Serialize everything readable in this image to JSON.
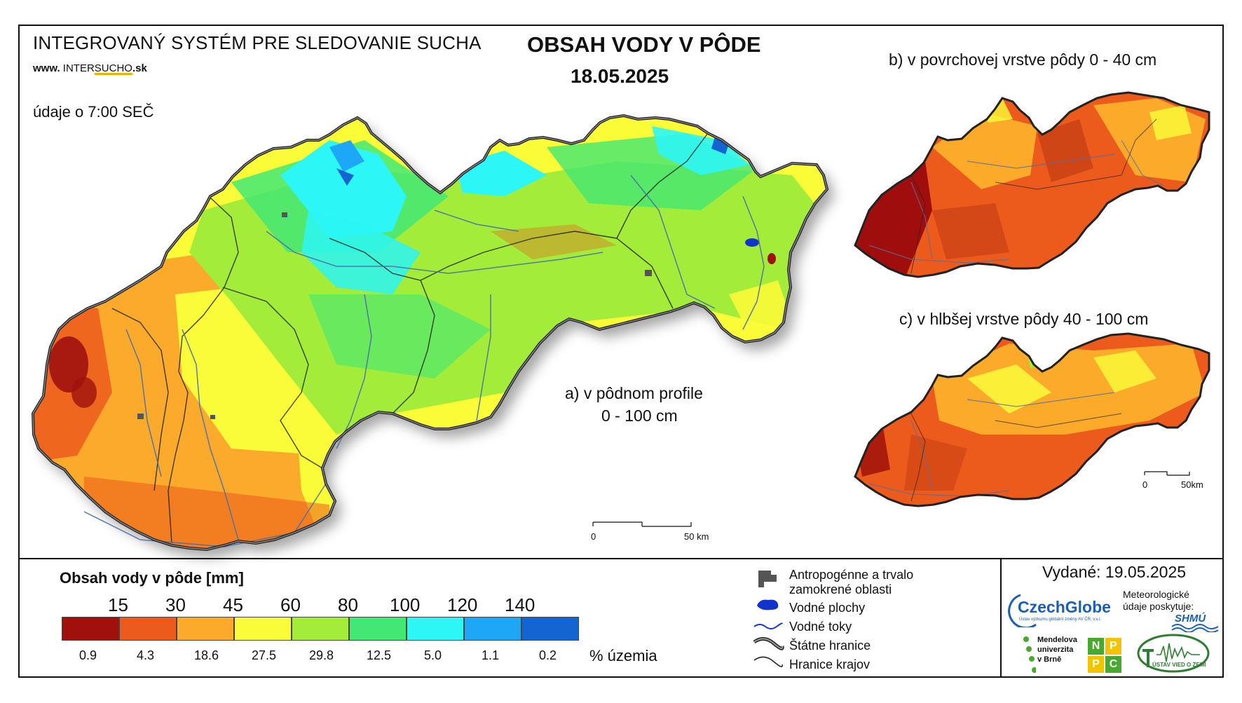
{
  "header": {
    "system_title": "INTEGROVANÝ SYSTÉM PRE SLEDOVANIE SUCHA",
    "website_prefix": "www.",
    "website_name_a": "INTER",
    "website_name_b": "SUCHO",
    "website_suffix": ".sk",
    "data_time": "údaje o 7:00 SEČ",
    "main_title": "OBSAH VODY V PÔDE",
    "date": "18.05.2025"
  },
  "maps": {
    "a_label_line1": "a) v pôdnom profile",
    "a_label_line2": "0 - 100 cm",
    "b_label": "b) v povrchovej vrstve pôdy 0 - 40 cm",
    "c_label": "c) v hlbšej vrstve pôdy 40 - 100 cm",
    "scale_main": {
      "zero": "0",
      "end": "50 km"
    },
    "scale_small": {
      "zero": "0",
      "end": "50km"
    }
  },
  "legend": {
    "title": "Obsah vody v pôde  [mm]",
    "thresholds": [
      "15",
      "30",
      "45",
      "60",
      "80",
      "100",
      "120",
      "140"
    ],
    "classes": [
      {
        "color": "#a0110d",
        "percent": "0.9"
      },
      {
        "color": "#ec5a1c",
        "percent": "4.3"
      },
      {
        "color": "#fbaa2b",
        "percent": "18.6"
      },
      {
        "color": "#fbfc39",
        "percent": "27.5"
      },
      {
        "color": "#a4ec3a",
        "percent": "29.8"
      },
      {
        "color": "#43e774",
        "percent": "12.5"
      },
      {
        "color": "#2cf6f6",
        "percent": "5.0"
      },
      {
        "color": "#1ea7f7",
        "percent": "1.1"
      },
      {
        "color": "#1465d1",
        "percent": "0.2"
      }
    ],
    "percent_label": "% územia"
  },
  "symbols": [
    {
      "icon": "anthropogenic-area-icon",
      "label_line1": "Antropogénne a trvalo",
      "label_line2": "zamokrené oblasti"
    },
    {
      "icon": "water-body-icon",
      "label_line1": "Vodné plochy",
      "label_line2": ""
    },
    {
      "icon": "river-icon",
      "label_line1": "Vodné toky",
      "label_line2": ""
    },
    {
      "icon": "state-border-icon",
      "label_line1": "Štátne hranice",
      "label_line2": ""
    },
    {
      "icon": "region-border-icon",
      "label_line1": "Hranice krajov",
      "label_line2": ""
    }
  ],
  "footer": {
    "issued": "Vydané: 19.05.2025",
    "czechglobe_name": "CzechGlobe",
    "czechglobe_sub": "Ústav výzkumu globální změny AV ČR, v.v.i.",
    "meteo_text": "Meteorologické údaje poskytuje:",
    "shmu": "SHMÚ",
    "mendel_line1": "Mendelova",
    "mendel_line2": "univerzita",
    "mendel_line3": "v Brně",
    "nppc_letters": [
      "N",
      "P",
      "P",
      "C"
    ],
    "earth_institute": "ÚSTAV VIED O ZEMI"
  },
  "colors": {
    "water": "#1133cc",
    "river": "#4a6fa5",
    "border": "#222222"
  }
}
